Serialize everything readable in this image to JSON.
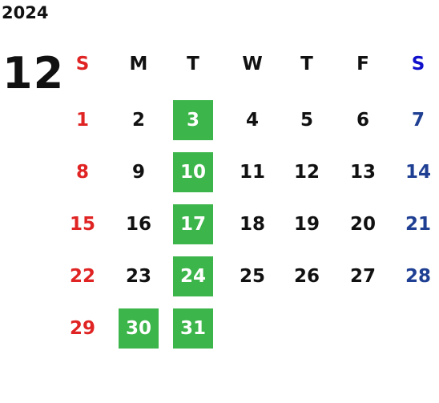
{
  "calendar": {
    "year": "2024",
    "month": "12",
    "weekdays": [
      "S",
      "M",
      "T",
      "W",
      "T",
      "F",
      "S"
    ],
    "weeks": [
      [
        {
          "day": 1
        },
        {
          "day": 2
        },
        {
          "day": 3,
          "highlighted": true
        },
        {
          "day": 4
        },
        {
          "day": 5
        },
        {
          "day": 6
        },
        {
          "day": 7
        }
      ],
      [
        {
          "day": 8
        },
        {
          "day": 9
        },
        {
          "day": 10,
          "highlighted": true
        },
        {
          "day": 11
        },
        {
          "day": 12
        },
        {
          "day": 13
        },
        {
          "day": 14
        }
      ],
      [
        {
          "day": 15
        },
        {
          "day": 16
        },
        {
          "day": 17,
          "highlighted": true
        },
        {
          "day": 18
        },
        {
          "day": 19
        },
        {
          "day": 20
        },
        {
          "day": 21
        }
      ],
      [
        {
          "day": 22
        },
        {
          "day": 23
        },
        {
          "day": 24,
          "highlighted": true
        },
        {
          "day": 25
        },
        {
          "day": 26
        },
        {
          "day": 27
        },
        {
          "day": 28
        }
      ],
      [
        {
          "day": 29
        },
        {
          "day": 30,
          "highlighted": true
        },
        {
          "day": 31,
          "highlighted": true
        }
      ]
    ]
  }
}
